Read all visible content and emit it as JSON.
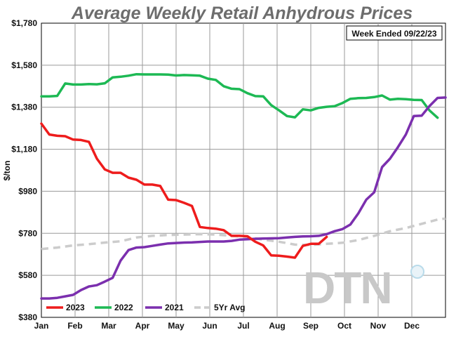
{
  "chart_data": {
    "type": "line",
    "title": "Average Weekly Retail Anhydrous Prices",
    "ylabel": "$/ton",
    "note": "Week Ended 09/22/23",
    "logo": "DTN",
    "ylim": [
      380,
      1780
    ],
    "yticks": [
      "$1,780",
      "$1,580",
      "$1,380",
      "$1,180",
      "$980",
      "$780",
      "$580",
      "$380"
    ],
    "ytick_values": [
      1780,
      1580,
      1380,
      1180,
      980,
      780,
      580,
      380
    ],
    "months": [
      "Jan",
      "Feb",
      "Mar",
      "Apr",
      "May",
      "Jun",
      "Jul",
      "Aug",
      "Sep",
      "Oct",
      "Nov",
      "Dec"
    ],
    "grid": true,
    "legend_position": "bottom-left",
    "series": [
      {
        "name": "2023",
        "color": "#ee1c1c",
        "dashed": false,
        "points": [
          [
            0,
            1302
          ],
          [
            1,
            1250
          ],
          [
            2,
            1244
          ],
          [
            3,
            1242
          ],
          [
            4,
            1226
          ],
          [
            5,
            1224
          ],
          [
            6,
            1215
          ],
          [
            7,
            1135
          ],
          [
            8,
            1084
          ],
          [
            9,
            1068
          ],
          [
            10,
            1068
          ],
          [
            11,
            1045
          ],
          [
            12,
            1035
          ],
          [
            13,
            1012
          ],
          [
            14,
            1012
          ],
          [
            15,
            1005
          ],
          [
            16,
            940
          ],
          [
            17,
            938
          ],
          [
            18,
            925
          ],
          [
            19,
            910
          ],
          [
            20,
            810
          ],
          [
            21,
            805
          ],
          [
            22,
            802
          ],
          [
            23,
            795
          ],
          [
            24,
            768
          ],
          [
            25,
            768
          ],
          [
            26,
            766
          ],
          [
            27,
            740
          ],
          [
            28,
            722
          ],
          [
            29,
            675
          ],
          [
            30,
            673
          ],
          [
            31,
            669
          ],
          [
            32,
            664
          ],
          [
            33,
            720
          ],
          [
            34,
            730
          ],
          [
            35,
            730
          ],
          [
            36,
            763
          ]
        ]
      },
      {
        "name": "2022",
        "color": "#1db954",
        "dashed": false,
        "points": [
          [
            0,
            1432
          ],
          [
            1,
            1432
          ],
          [
            2,
            1434
          ],
          [
            3,
            1493
          ],
          [
            4,
            1488
          ],
          [
            5,
            1488
          ],
          [
            6,
            1490
          ],
          [
            7,
            1489
          ],
          [
            8,
            1494
          ],
          [
            9,
            1522
          ],
          [
            10,
            1525
          ],
          [
            11,
            1530
          ],
          [
            12,
            1537
          ],
          [
            13,
            1536
          ],
          [
            14,
            1536
          ],
          [
            15,
            1536
          ],
          [
            16,
            1535
          ],
          [
            17,
            1531
          ],
          [
            18,
            1533
          ],
          [
            19,
            1532
          ],
          [
            20,
            1530
          ],
          [
            21,
            1516
          ],
          [
            22,
            1510
          ],
          [
            23,
            1480
          ],
          [
            24,
            1468
          ],
          [
            25,
            1466
          ],
          [
            26,
            1447
          ],
          [
            27,
            1433
          ],
          [
            28,
            1432
          ],
          [
            29,
            1390
          ],
          [
            30,
            1365
          ],
          [
            31,
            1338
          ],
          [
            32,
            1332
          ],
          [
            33,
            1370
          ],
          [
            34,
            1365
          ],
          [
            35,
            1377
          ],
          [
            36,
            1382
          ],
          [
            37,
            1385
          ],
          [
            38,
            1400
          ],
          [
            39,
            1420
          ],
          [
            40,
            1423
          ],
          [
            41,
            1424
          ],
          [
            42,
            1428
          ],
          [
            43,
            1436
          ],
          [
            44,
            1416
          ],
          [
            45,
            1420
          ],
          [
            46,
            1418
          ],
          [
            47,
            1415
          ],
          [
            48,
            1414
          ],
          [
            49,
            1364
          ],
          [
            50,
            1330
          ]
        ]
      },
      {
        "name": "2021",
        "color": "#7b2fae",
        "dashed": false,
        "points": [
          [
            0,
            470
          ],
          [
            1,
            470
          ],
          [
            2,
            473
          ],
          [
            3,
            480
          ],
          [
            4,
            487
          ],
          [
            5,
            510
          ],
          [
            6,
            527
          ],
          [
            7,
            533
          ],
          [
            8,
            550
          ],
          [
            9,
            568
          ],
          [
            10,
            650
          ],
          [
            11,
            700
          ],
          [
            12,
            712
          ],
          [
            13,
            714
          ],
          [
            14,
            720
          ],
          [
            15,
            726
          ],
          [
            16,
            732
          ],
          [
            17,
            734
          ],
          [
            18,
            736
          ],
          [
            19,
            737
          ],
          [
            20,
            739
          ],
          [
            21,
            741
          ],
          [
            22,
            741
          ],
          [
            23,
            741
          ],
          [
            24,
            744
          ],
          [
            25,
            750
          ],
          [
            26,
            752
          ],
          [
            27,
            754
          ],
          [
            28,
            755
          ],
          [
            29,
            756
          ],
          [
            30,
            757
          ],
          [
            31,
            760
          ],
          [
            32,
            763
          ],
          [
            33,
            765
          ],
          [
            34,
            766
          ],
          [
            35,
            768
          ],
          [
            36,
            776
          ],
          [
            37,
            790
          ],
          [
            38,
            800
          ],
          [
            39,
            822
          ],
          [
            40,
            875
          ],
          [
            41,
            940
          ],
          [
            42,
            975
          ],
          [
            43,
            1095
          ],
          [
            44,
            1135
          ],
          [
            45,
            1190
          ],
          [
            46,
            1250
          ],
          [
            47,
            1338
          ],
          [
            48,
            1340
          ],
          [
            49,
            1386
          ],
          [
            50,
            1424
          ],
          [
            51,
            1426
          ]
        ]
      },
      {
        "name": "5Yr Avg",
        "color": "#cccccc",
        "dashed": true,
        "points": [
          [
            0,
            705
          ],
          [
            2,
            712
          ],
          [
            4,
            722
          ],
          [
            6,
            728
          ],
          [
            8,
            736
          ],
          [
            10,
            742
          ],
          [
            12,
            760
          ],
          [
            14,
            768
          ],
          [
            16,
            772
          ],
          [
            18,
            774
          ],
          [
            20,
            776
          ],
          [
            22,
            774
          ],
          [
            24,
            768
          ],
          [
            26,
            762
          ],
          [
            28,
            750
          ],
          [
            30,
            740
          ],
          [
            32,
            726
          ],
          [
            34,
            724
          ],
          [
            36,
            730
          ],
          [
            38,
            735
          ],
          [
            40,
            748
          ],
          [
            42,
            768
          ],
          [
            44,
            790
          ],
          [
            46,
            805
          ],
          [
            48,
            825
          ],
          [
            50,
            845
          ],
          [
            51,
            850
          ]
        ]
      }
    ]
  }
}
